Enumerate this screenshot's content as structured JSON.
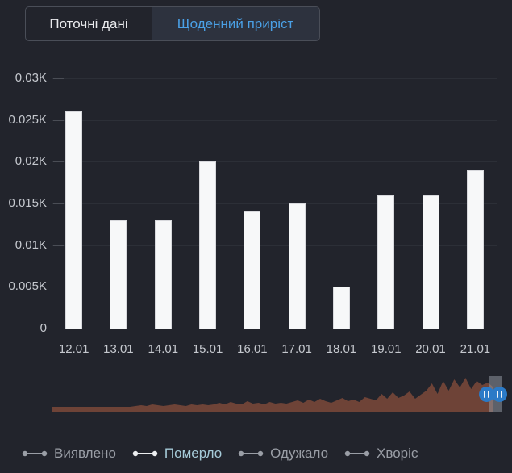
{
  "tabs": [
    {
      "label": "Поточні дані",
      "active": false
    },
    {
      "label": "Щоденний приріст",
      "active": true
    }
  ],
  "chart_data": {
    "type": "bar",
    "title": "",
    "xlabel": "",
    "ylabel": "",
    "categories": [
      "12.01",
      "13.01",
      "14.01",
      "15.01",
      "16.01",
      "17.01",
      "18.01",
      "19.01",
      "20.01",
      "21.01"
    ],
    "values": [
      26,
      13,
      13,
      20,
      14,
      15,
      5,
      16,
      16,
      19
    ],
    "values_unit": "K (displayed as thousandths, e.g. 26 = 0.026K)",
    "series_name": "Померло",
    "yticks": [
      "0.03K",
      "0.025K",
      "0.02K",
      "0.015K",
      "0.01K",
      "0.005K",
      "0"
    ],
    "ytick_values": [
      30,
      25,
      20,
      15,
      10,
      5,
      0
    ],
    "ylim": [
      0,
      30
    ],
    "grid": true,
    "legend_position": "bottom",
    "bar_color": "#f7f8f9"
  },
  "scrubber": {
    "description": "timeline-minimap-area-chart",
    "area_color": "#6e4337",
    "handle_color": "#2b7ac7",
    "selection_color": "rgba(152,157,167,0.5)",
    "envelope": [
      6,
      6,
      6,
      6,
      6,
      6,
      6,
      6,
      6,
      6,
      6,
      6,
      6,
      6,
      6,
      7,
      8,
      7,
      9,
      8,
      7,
      8,
      9,
      8,
      7,
      9,
      8,
      9,
      8,
      9,
      11,
      9,
      12,
      10,
      9,
      13,
      10,
      11,
      9,
      12,
      10,
      11,
      10,
      12,
      14,
      11,
      15,
      12,
      16,
      13,
      11,
      14,
      17,
      13,
      15,
      12,
      18,
      16,
      14,
      22,
      16,
      24,
      17,
      20,
      25,
      16,
      21,
      26,
      35,
      22,
      38,
      26,
      40,
      30,
      42,
      28,
      38,
      33,
      36,
      30
    ]
  },
  "legend": [
    {
      "label": "Виявлено",
      "selected": false
    },
    {
      "label": "Померло",
      "selected": true
    },
    {
      "label": "Одужало",
      "selected": false
    },
    {
      "label": "Хворіє",
      "selected": false
    }
  ],
  "colors": {
    "background": "#22242c",
    "accent_blue": "#4aa0e6",
    "active_tab_bg": "#2d323e",
    "text_light": "#e9eaed",
    "text_muted": "#c5c8ce",
    "legend_gray": "#9a9ea6",
    "legend_selected_text": "#a5cad8",
    "legend_selected_icon": "#edeff1"
  }
}
